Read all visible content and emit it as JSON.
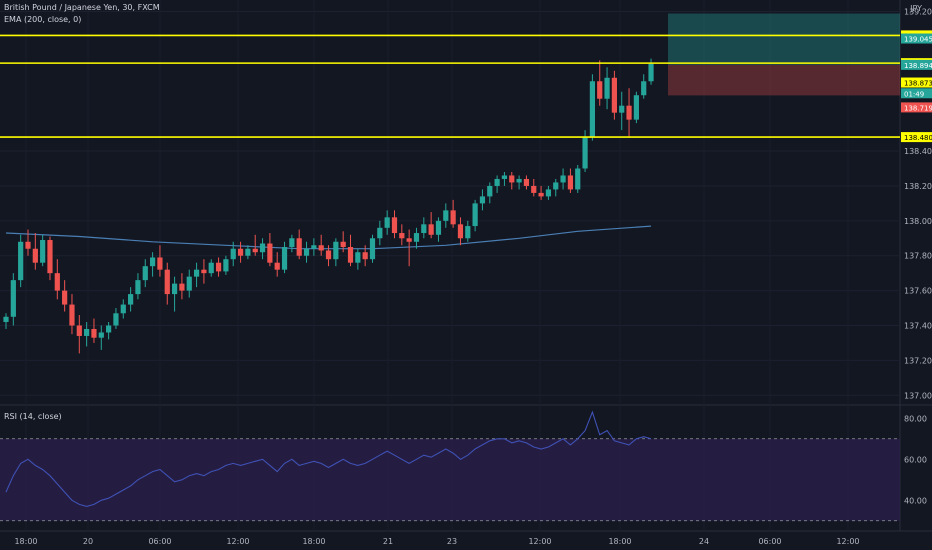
{
  "header": {
    "symbol": "British Pound / Japanese Yen, 30, FXCM",
    "indicator": "EMA (200, close, 0)",
    "currency": "JPY"
  },
  "rsi_header": "RSI (14, close)",
  "colors": {
    "background": "#131722",
    "bull": "#26a69a",
    "bear": "#ef5350",
    "ema": "#4a7fb5",
    "level": "#ffff00",
    "rsi_line": "#3f51b5",
    "rsi_band": "#2a1f4a"
  },
  "chart_data": [
    {
      "type": "candlestick",
      "series_note": "",
      "y_ticks": [
        "139.200",
        "138.400",
        "138.200",
        "138.000",
        "137.800",
        "137.600",
        "137.400",
        "137.200",
        "137.000"
      ],
      "ylim": [
        136.95,
        139.22
      ],
      "x_ticks": [
        "18:00",
        "20",
        "06:00",
        "12:00",
        "18:00",
        "21",
        "23",
        "12:00",
        "18:00",
        "24",
        "06:00",
        "12:00"
      ],
      "horizontal_levels": [
        {
          "value": 139.063,
          "label": "139.063",
          "color": "#ffff00"
        },
        {
          "value": 138.904,
          "label": "138.904",
          "color": "#ffff00"
        },
        {
          "value": 138.48,
          "label": "138.480",
          "color": "#ffff00"
        }
      ],
      "price_tags": [
        {
          "value": 139.045,
          "label": "139.045",
          "bg": "#26a69a"
        },
        {
          "value": 138.894,
          "label": "138.894",
          "bg": "#26a69a"
        },
        {
          "value": 138.8,
          "label": "01:49",
          "bg": "#26a69a"
        },
        {
          "value": 138.873,
          "label": "138.873",
          "bg": "#ffff00"
        },
        {
          "value": 138.719,
          "label": "138.719",
          "bg": "#ef5350"
        }
      ],
      "position": {
        "entry": 138.894,
        "target": 139.045,
        "stop": 138.719
      },
      "ohlc": [
        [
          137.42,
          137.47,
          137.38,
          137.45
        ],
        [
          137.45,
          137.7,
          137.4,
          137.66
        ],
        [
          137.66,
          137.92,
          137.62,
          137.88
        ],
        [
          137.88,
          137.95,
          137.8,
          137.84
        ],
        [
          137.84,
          137.93,
          137.72,
          137.76
        ],
        [
          137.76,
          137.92,
          137.74,
          137.89
        ],
        [
          137.89,
          137.91,
          137.66,
          137.7
        ],
        [
          137.7,
          137.78,
          137.55,
          137.6
        ],
        [
          137.6,
          137.66,
          137.48,
          137.52
        ],
        [
          137.52,
          137.58,
          137.35,
          137.4
        ],
        [
          137.4,
          137.46,
          137.24,
          137.34
        ],
        [
          137.34,
          137.42,
          137.28,
          137.38
        ],
        [
          137.38,
          137.44,
          137.3,
          137.33
        ],
        [
          137.33,
          137.4,
          137.26,
          137.36
        ],
        [
          137.36,
          137.42,
          137.32,
          137.4
        ],
        [
          137.4,
          137.5,
          137.38,
          137.47
        ],
        [
          137.47,
          137.55,
          137.44,
          137.52
        ],
        [
          137.52,
          137.62,
          137.48,
          137.58
        ],
        [
          137.58,
          137.7,
          137.55,
          137.66
        ],
        [
          137.66,
          137.78,
          137.62,
          137.74
        ],
        [
          137.74,
          137.82,
          137.68,
          137.79
        ],
        [
          137.79,
          137.86,
          137.68,
          137.72
        ],
        [
          137.72,
          137.76,
          137.52,
          137.58
        ],
        [
          137.58,
          137.68,
          137.48,
          137.64
        ],
        [
          137.64,
          137.7,
          137.55,
          137.6
        ],
        [
          137.6,
          137.72,
          137.56,
          137.68
        ],
        [
          137.68,
          137.76,
          137.62,
          137.72
        ],
        [
          137.72,
          137.78,
          137.64,
          137.7
        ],
        [
          137.7,
          137.78,
          137.68,
          137.76
        ],
        [
          137.76,
          137.79,
          137.68,
          137.71
        ],
        [
          137.71,
          137.8,
          137.69,
          137.78
        ],
        [
          137.78,
          137.88,
          137.74,
          137.84
        ],
        [
          137.84,
          137.88,
          137.76,
          137.8
        ],
        [
          137.8,
          137.86,
          137.78,
          137.84
        ],
        [
          137.84,
          137.92,
          137.8,
          137.82
        ],
        [
          137.82,
          137.9,
          137.78,
          137.87
        ],
        [
          137.87,
          137.93,
          137.74,
          137.76
        ],
        [
          137.76,
          137.82,
          137.68,
          137.72
        ],
        [
          137.72,
          137.88,
          137.7,
          137.85
        ],
        [
          137.85,
          137.92,
          137.82,
          137.9
        ],
        [
          137.9,
          137.95,
          137.78,
          137.8
        ],
        [
          137.8,
          137.88,
          137.76,
          137.84
        ],
        [
          137.84,
          137.9,
          137.8,
          137.86
        ],
        [
          137.86,
          137.92,
          137.8,
          137.83
        ],
        [
          137.83,
          137.86,
          137.74,
          137.78
        ],
        [
          137.78,
          137.9,
          137.74,
          137.88
        ],
        [
          137.88,
          137.94,
          137.82,
          137.85
        ],
        [
          137.85,
          137.92,
          137.74,
          137.76
        ],
        [
          137.76,
          137.84,
          137.72,
          137.82
        ],
        [
          137.82,
          137.86,
          137.74,
          137.78
        ],
        [
          137.78,
          137.92,
          137.76,
          137.9
        ],
        [
          137.9,
          138.0,
          137.86,
          137.96
        ],
        [
          137.96,
          138.06,
          137.92,
          138.02
        ],
        [
          138.02,
          138.06,
          137.9,
          137.93
        ],
        [
          137.93,
          137.98,
          137.86,
          137.9
        ],
        [
          137.9,
          137.95,
          137.74,
          137.88
        ],
        [
          137.88,
          137.96,
          137.84,
          137.93
        ],
        [
          137.93,
          138.02,
          137.9,
          137.98
        ],
        [
          137.98,
          138.05,
          137.9,
          137.92
        ],
        [
          137.92,
          138.02,
          137.88,
          138.0
        ],
        [
          138.0,
          138.1,
          137.96,
          138.06
        ],
        [
          138.06,
          138.12,
          137.96,
          137.98
        ],
        [
          137.98,
          138.02,
          137.86,
          137.9
        ],
        [
          137.9,
          138.0,
          137.88,
          137.97
        ],
        [
          137.97,
          138.12,
          137.94,
          138.1
        ],
        [
          138.1,
          138.18,
          138.06,
          138.14
        ],
        [
          138.14,
          138.22,
          138.1,
          138.2
        ],
        [
          138.2,
          138.26,
          138.16,
          138.24
        ],
        [
          138.24,
          138.28,
          138.2,
          138.26
        ],
        [
          138.26,
          138.28,
          138.18,
          138.22
        ],
        [
          138.22,
          138.26,
          138.18,
          138.24
        ],
        [
          138.24,
          138.26,
          138.18,
          138.2
        ],
        [
          138.2,
          138.24,
          138.14,
          138.16
        ],
        [
          138.16,
          138.2,
          138.12,
          138.14
        ],
        [
          138.14,
          138.2,
          138.12,
          138.18
        ],
        [
          138.18,
          138.24,
          138.14,
          138.22
        ],
        [
          138.22,
          138.3,
          138.18,
          138.26
        ],
        [
          138.26,
          138.3,
          138.16,
          138.18
        ],
        [
          138.18,
          138.32,
          138.16,
          138.3
        ],
        [
          138.3,
          138.52,
          138.28,
          138.48
        ],
        [
          138.48,
          138.84,
          138.46,
          138.8
        ],
        [
          138.8,
          138.92,
          138.66,
          138.7
        ],
        [
          138.7,
          138.88,
          138.64,
          138.82
        ],
        [
          138.82,
          138.86,
          138.58,
          138.62
        ],
        [
          138.62,
          138.74,
          138.52,
          138.66
        ],
        [
          138.66,
          138.76,
          138.48,
          138.58
        ],
        [
          138.58,
          138.74,
          138.56,
          138.72
        ],
        [
          138.72,
          138.84,
          138.7,
          138.8
        ],
        [
          138.8,
          138.93,
          138.78,
          138.9
        ]
      ],
      "ema": [
        [
          0,
          137.93
        ],
        [
          10,
          137.91
        ],
        [
          20,
          137.88
        ],
        [
          30,
          137.86
        ],
        [
          40,
          137.84
        ],
        [
          50,
          137.84
        ],
        [
          60,
          137.86
        ],
        [
          70,
          137.9
        ],
        [
          78,
          137.94
        ],
        [
          88,
          137.97
        ]
      ]
    },
    {
      "type": "line",
      "title": "",
      "y_ticks": [
        "80.00",
        "60.00",
        "40.00"
      ],
      "ylim": [
        25,
        86
      ],
      "bands": [
        70,
        30
      ],
      "values": [
        44,
        52,
        58,
        60,
        57,
        55,
        52,
        48,
        44,
        40,
        38,
        37,
        38,
        40,
        41,
        43,
        45,
        47,
        50,
        52,
        54,
        55,
        52,
        49,
        50,
        52,
        53,
        52,
        54,
        55,
        57,
        58,
        57,
        58,
        59,
        60,
        57,
        54,
        58,
        60,
        57,
        58,
        59,
        58,
        56,
        58,
        60,
        58,
        57,
        58,
        60,
        62,
        64,
        62,
        60,
        58,
        60,
        62,
        61,
        63,
        65,
        63,
        60,
        62,
        65,
        67,
        69,
        70,
        70,
        68,
        69,
        68,
        66,
        65,
        66,
        68,
        70,
        67,
        70,
        74,
        83,
        72,
        74,
        69,
        68,
        67,
        70,
        71,
        70
      ]
    }
  ]
}
